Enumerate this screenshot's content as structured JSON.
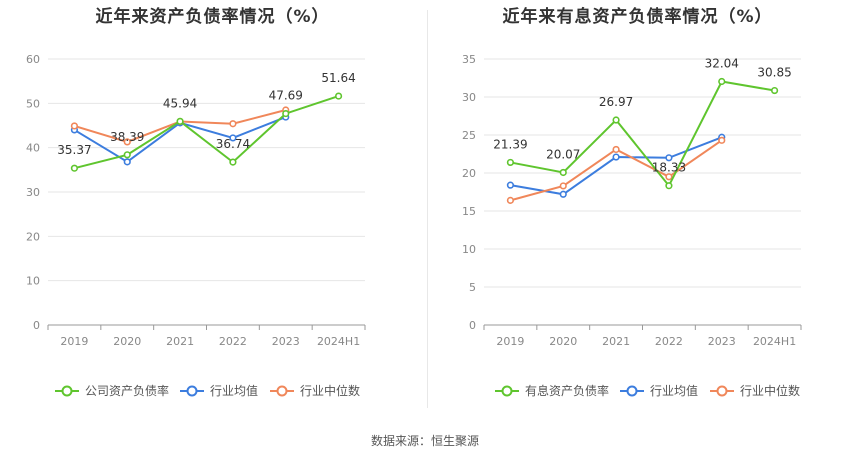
{
  "source_label": "数据来源：恒生聚源",
  "chart_data": [
    {
      "type": "line",
      "title": "近年来资产负债率情况（%）",
      "categories": [
        "2019",
        "2020",
        "2021",
        "2022",
        "2023",
        "2024H1"
      ],
      "ylim": [
        0,
        60
      ],
      "yticks": [
        0,
        10,
        20,
        30,
        40,
        50,
        60
      ],
      "grid": true,
      "legend_position": "bottom",
      "series": [
        {
          "name": "公司资产负债率",
          "color": "#5fc52e",
          "values": [
            35.37,
            38.39,
            45.94,
            36.74,
            47.69,
            51.64
          ],
          "labels": [
            "35.37",
            "38.39",
            "45.94",
            "36.74",
            "47.69",
            "51.64"
          ]
        },
        {
          "name": "行业均值",
          "color": "#3c7dde",
          "values": [
            44.0,
            36.8,
            45.6,
            42.2,
            46.9,
            null
          ]
        },
        {
          "name": "行业中位数",
          "color": "#f0875a",
          "values": [
            44.9,
            41.3,
            45.9,
            45.4,
            48.5,
            null
          ]
        }
      ]
    },
    {
      "type": "line",
      "title": "近年来有息资产负债率情况（%）",
      "categories": [
        "2019",
        "2020",
        "2021",
        "2022",
        "2023",
        "2024H1"
      ],
      "ylim": [
        0,
        35
      ],
      "yticks": [
        0,
        5,
        10,
        15,
        20,
        25,
        30,
        35
      ],
      "grid": true,
      "legend_position": "bottom",
      "series": [
        {
          "name": "有息资产负债率",
          "color": "#5fc52e",
          "values": [
            21.39,
            20.07,
            26.97,
            18.33,
            32.04,
            30.85
          ],
          "labels": [
            "21.39",
            "20.07",
            "26.97",
            "18.33",
            "32.04",
            "30.85"
          ]
        },
        {
          "name": "行业均值",
          "color": "#3c7dde",
          "values": [
            18.4,
            17.2,
            22.1,
            22.0,
            24.7,
            null
          ]
        },
        {
          "name": "行业中位数",
          "color": "#f0875a",
          "values": [
            16.4,
            18.3,
            23.1,
            19.5,
            24.3,
            null
          ]
        }
      ]
    }
  ]
}
